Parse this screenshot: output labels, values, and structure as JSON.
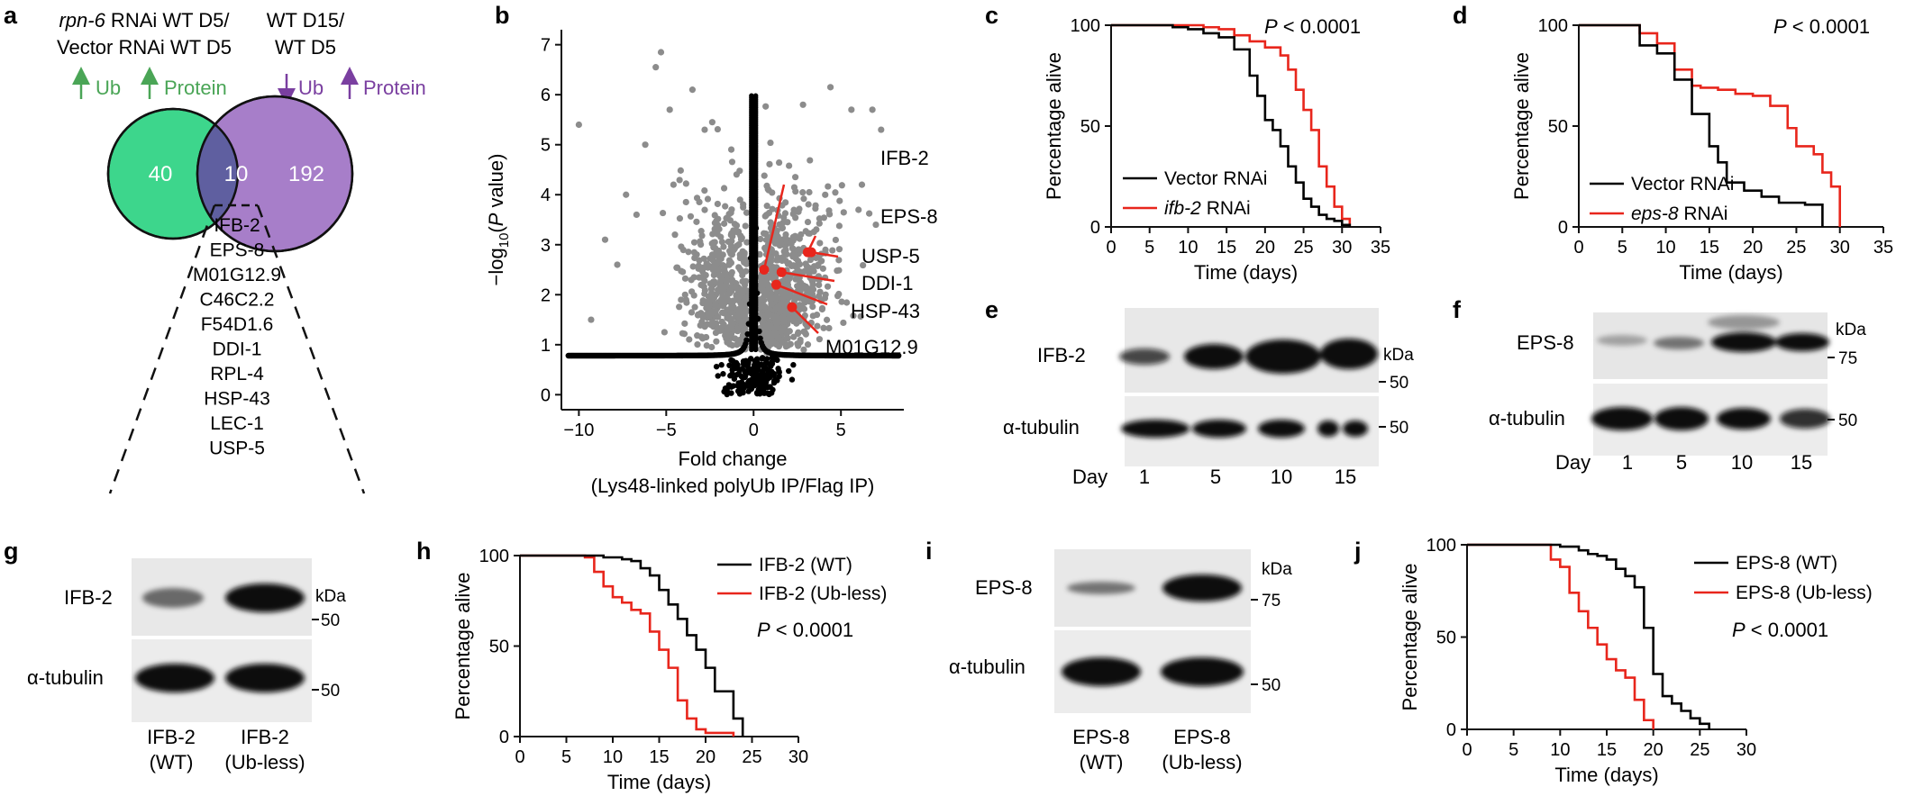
{
  "panel_letters": [
    "a",
    "b",
    "c",
    "d",
    "e",
    "f",
    "g",
    "h",
    "i",
    "j"
  ],
  "colors": {
    "green": "#4aa556",
    "purple": "#7a3fa0",
    "red": "#e8261c",
    "grey": "#8c8c8c",
    "black": "#000000",
    "venn_green": "#3dd68c",
    "venn_purple": "#a77ec9",
    "venn_overlap": "#5f5fa0"
  },
  "venn": {
    "left_title": [
      "rpn-6 RNAi WT D5/",
      "Vector RNAi WT D5"
    ],
    "left_title_italic": "rpn-6",
    "right_title": [
      "WT D15/",
      "WT D5"
    ],
    "left_arrows": [
      {
        "dir": "up",
        "label": "Ub"
      },
      {
        "dir": "up",
        "label": "Protein"
      }
    ],
    "right_arrows": [
      {
        "dir": "down",
        "label": "Ub"
      },
      {
        "dir": "up",
        "label": "Protein"
      }
    ],
    "left_only": "40",
    "overlap": "10",
    "right_only": "192",
    "overlap_list": [
      "IFB-2",
      "EPS-8",
      "M01G12.9",
      "C46C2.2",
      "F54D1.6",
      "DDI-1",
      "RPL-4",
      "HSP-43",
      "LEC-1",
      "USP-5"
    ]
  },
  "chart_data": [
    {
      "panel": "b",
      "type": "scatter",
      "xlabel": "Fold change",
      "xlabel2": "(Lys48-linked polyUb IP/Flag IP)",
      "ylabel": "−log10(P value)",
      "xlim": [
        -11,
        8.6
      ],
      "ylim": [
        -0.3,
        7.3
      ],
      "xticks": [
        -10,
        -5,
        0,
        5
      ],
      "yticks": [
        0,
        1,
        2,
        3,
        4,
        5,
        6,
        7
      ],
      "highlighted": [
        {
          "label": "IFB-2",
          "x": 0.6,
          "y": 2.5
        },
        {
          "label": "EPS-8",
          "x": 3.1,
          "y": 2.85
        },
        {
          "label": "USP-5",
          "x": 3.3,
          "y": 2.85
        },
        {
          "label": "DDI-1",
          "x": 1.6,
          "y": 2.45
        },
        {
          "label": "HSP-43",
          "x": 1.3,
          "y": 2.2
        },
        {
          "label": "M01G12.9",
          "x": 2.2,
          "y": 1.75
        }
      ],
      "grey_outliers": [
        {
          "x": -10,
          "y": 5.4
        },
        {
          "x": -5.6,
          "y": 6.55
        },
        {
          "x": -5.3,
          "y": 6.85
        },
        {
          "x": -7.3,
          "y": 4.0
        },
        {
          "x": -4.8,
          "y": 5.7
        },
        {
          "x": -9.3,
          "y": 1.5
        },
        {
          "x": -5.1,
          "y": 1.25
        },
        {
          "x": -6.7,
          "y": 3.6
        },
        {
          "x": 6.8,
          "y": 5.7
        },
        {
          "x": 7.3,
          "y": 5.3
        },
        {
          "x": 4.4,
          "y": 6.15
        },
        {
          "x": 5.6,
          "y": 5.7
        },
        {
          "x": -3.5,
          "y": 6.1
        },
        {
          "x": -6.2,
          "y": 5.0
        },
        {
          "x": -7.8,
          "y": 2.6
        },
        {
          "x": -4.5,
          "y": 3.2
        },
        {
          "x": 6.2,
          "y": 4.2
        },
        {
          "x": 7.0,
          "y": 3.4
        },
        {
          "x": -2.8,
          "y": 5.3
        },
        {
          "x": -8.5,
          "y": 3.1
        }
      ]
    },
    {
      "panel": "c",
      "type": "line",
      "step": true,
      "xlabel": "Time (days)",
      "ylabel": "Percentage alive",
      "pvalue": "P < 0.0001",
      "xlim": [
        0,
        35
      ],
      "ylim": [
        0,
        100
      ],
      "xticks": [
        0,
        5,
        10,
        15,
        20,
        25,
        30,
        35
      ],
      "yticks": [
        0,
        50,
        100
      ],
      "series": [
        {
          "name": "Vector RNAi",
          "color": "#000000",
          "x": [
            0,
            5,
            8,
            10,
            12,
            14,
            16,
            18,
            19,
            20,
            21,
            22,
            23,
            24,
            25,
            26,
            27,
            28,
            29,
            30,
            31
          ],
          "y": [
            100,
            100,
            99,
            98,
            96,
            94,
            88,
            75,
            65,
            53,
            48,
            40,
            30,
            22,
            14,
            10,
            6,
            4,
            3,
            1,
            0
          ]
        },
        {
          "name": "ifb-2 RNAi",
          "color": "#e8261c",
          "x": [
            0,
            5,
            10,
            12,
            14,
            16,
            18,
            20,
            22,
            23,
            24,
            25,
            26,
            27,
            28,
            29,
            30,
            31
          ],
          "y": [
            100,
            100,
            100,
            99,
            98,
            95,
            92,
            89,
            85,
            78,
            68,
            58,
            48,
            30,
            20,
            10,
            4,
            0
          ]
        }
      ]
    },
    {
      "panel": "d",
      "type": "line",
      "step": true,
      "xlabel": "Time (days)",
      "ylabel": "Percentage alive",
      "pvalue": "P < 0.0001",
      "xlim": [
        0,
        35
      ],
      "ylim": [
        0,
        100
      ],
      "xticks": [
        0,
        5,
        10,
        15,
        20,
        25,
        30,
        35
      ],
      "yticks": [
        0,
        50,
        100
      ],
      "series": [
        {
          "name": "Vector RNAi",
          "color": "#000000",
          "x": [
            0,
            6,
            7,
            9,
            11,
            13,
            15,
            16,
            17,
            19,
            21,
            23,
            25,
            26,
            27,
            28
          ],
          "y": [
            100,
            100,
            90,
            86,
            73,
            56,
            40,
            32,
            22,
            18,
            15,
            12,
            12,
            11,
            11,
            0
          ]
        },
        {
          "name": "eps-8 RNAi",
          "color": "#e8261c",
          "x": [
            0,
            6,
            7,
            9,
            11,
            13,
            14,
            16,
            18,
            20,
            22,
            24,
            25,
            27,
            28,
            29,
            30
          ],
          "y": [
            100,
            100,
            96,
            91,
            78,
            70,
            69,
            68,
            66,
            65,
            60,
            49,
            40,
            36,
            27,
            20,
            0
          ]
        }
      ]
    },
    {
      "panel": "h",
      "type": "line",
      "step": true,
      "xlabel": "Time (days)",
      "ylabel": "Percentage alive",
      "pvalue": "P < 0.0001",
      "xlim": [
        0,
        30
      ],
      "ylim": [
        0,
        100
      ],
      "xticks": [
        0,
        5,
        10,
        15,
        20,
        25,
        30
      ],
      "yticks": [
        0,
        50,
        100
      ],
      "series": [
        {
          "name": "IFB-2 (WT)",
          "color": "#000000",
          "x": [
            0,
            7,
            9,
            11,
            12,
            13,
            14,
            15,
            16,
            17,
            18,
            19,
            20,
            21,
            22,
            23,
            24
          ],
          "y": [
            100,
            100,
            99,
            98,
            97,
            93,
            89,
            81,
            73,
            65,
            56,
            48,
            38,
            25,
            25,
            10,
            0
          ]
        },
        {
          "name": "IFB-2 (Ub-less)",
          "color": "#e8261c",
          "x": [
            0,
            3,
            7,
            8,
            9,
            10,
            11,
            12,
            13,
            14,
            15,
            16,
            17,
            18,
            19,
            20,
            21,
            23
          ],
          "y": [
            100,
            100,
            99,
            91,
            83,
            77,
            74,
            70,
            68,
            58,
            48,
            38,
            20,
            10,
            4,
            2,
            2,
            0
          ]
        }
      ]
    },
    {
      "panel": "j",
      "type": "line",
      "step": true,
      "xlabel": "Time (days)",
      "ylabel": "Percentage alive",
      "pvalue": "P < 0.0001",
      "xlim": [
        0,
        30
      ],
      "ylim": [
        0,
        100
      ],
      "xticks": [
        0,
        5,
        10,
        15,
        20,
        25,
        30
      ],
      "yticks": [
        0,
        50,
        100
      ],
      "series": [
        {
          "name": "EPS-8 (WT)",
          "color": "#000000",
          "x": [
            0,
            8,
            10,
            12,
            13,
            14,
            15,
            16,
            17,
            18,
            19,
            20,
            21,
            22,
            23,
            24,
            25,
            26
          ],
          "y": [
            100,
            100,
            99,
            97,
            95,
            94,
            92,
            87,
            83,
            77,
            55,
            30,
            18,
            14,
            10,
            6,
            3,
            0
          ]
        },
        {
          "name": "EPS-8 (Ub-less)",
          "color": "#e8261c",
          "x": [
            0,
            7,
            9,
            10,
            11,
            12,
            13,
            14,
            15,
            16,
            17,
            18,
            19,
            20
          ],
          "y": [
            100,
            100,
            92,
            88,
            74,
            64,
            55,
            46,
            38,
            32,
            28,
            16,
            5,
            0
          ]
        }
      ]
    }
  ],
  "blots": {
    "e": {
      "protein": "IFB-2",
      "loading": "α-tubulin",
      "day_label": "Day",
      "lanes": [
        "1",
        "5",
        "10",
        "15"
      ],
      "kda_label": "kDa",
      "marker_top": "50",
      "marker_bottom": "50"
    },
    "f": {
      "protein": "EPS-8",
      "loading": "α-tubulin",
      "day_label": "Day",
      "lanes": [
        "1",
        "5",
        "10",
        "15"
      ],
      "kda_label": "kDa",
      "marker_top": "75",
      "marker_bottom": "50"
    },
    "g": {
      "protein": "IFB-2",
      "loading": "α-tubulin",
      "lanes": [
        [
          "IFB-2",
          "(WT)"
        ],
        [
          "IFB-2",
          "(Ub-less)"
        ]
      ],
      "kda_label": "kDa",
      "marker_top": "50",
      "marker_bottom": "50"
    },
    "i": {
      "protein": "EPS-8",
      "loading": "α-tubulin",
      "lanes": [
        [
          "EPS-8",
          "(WT)"
        ],
        [
          "EPS-8",
          "(Ub-less)"
        ]
      ],
      "kda_label": "kDa",
      "marker_top": "75",
      "marker_bottom": "50"
    }
  }
}
